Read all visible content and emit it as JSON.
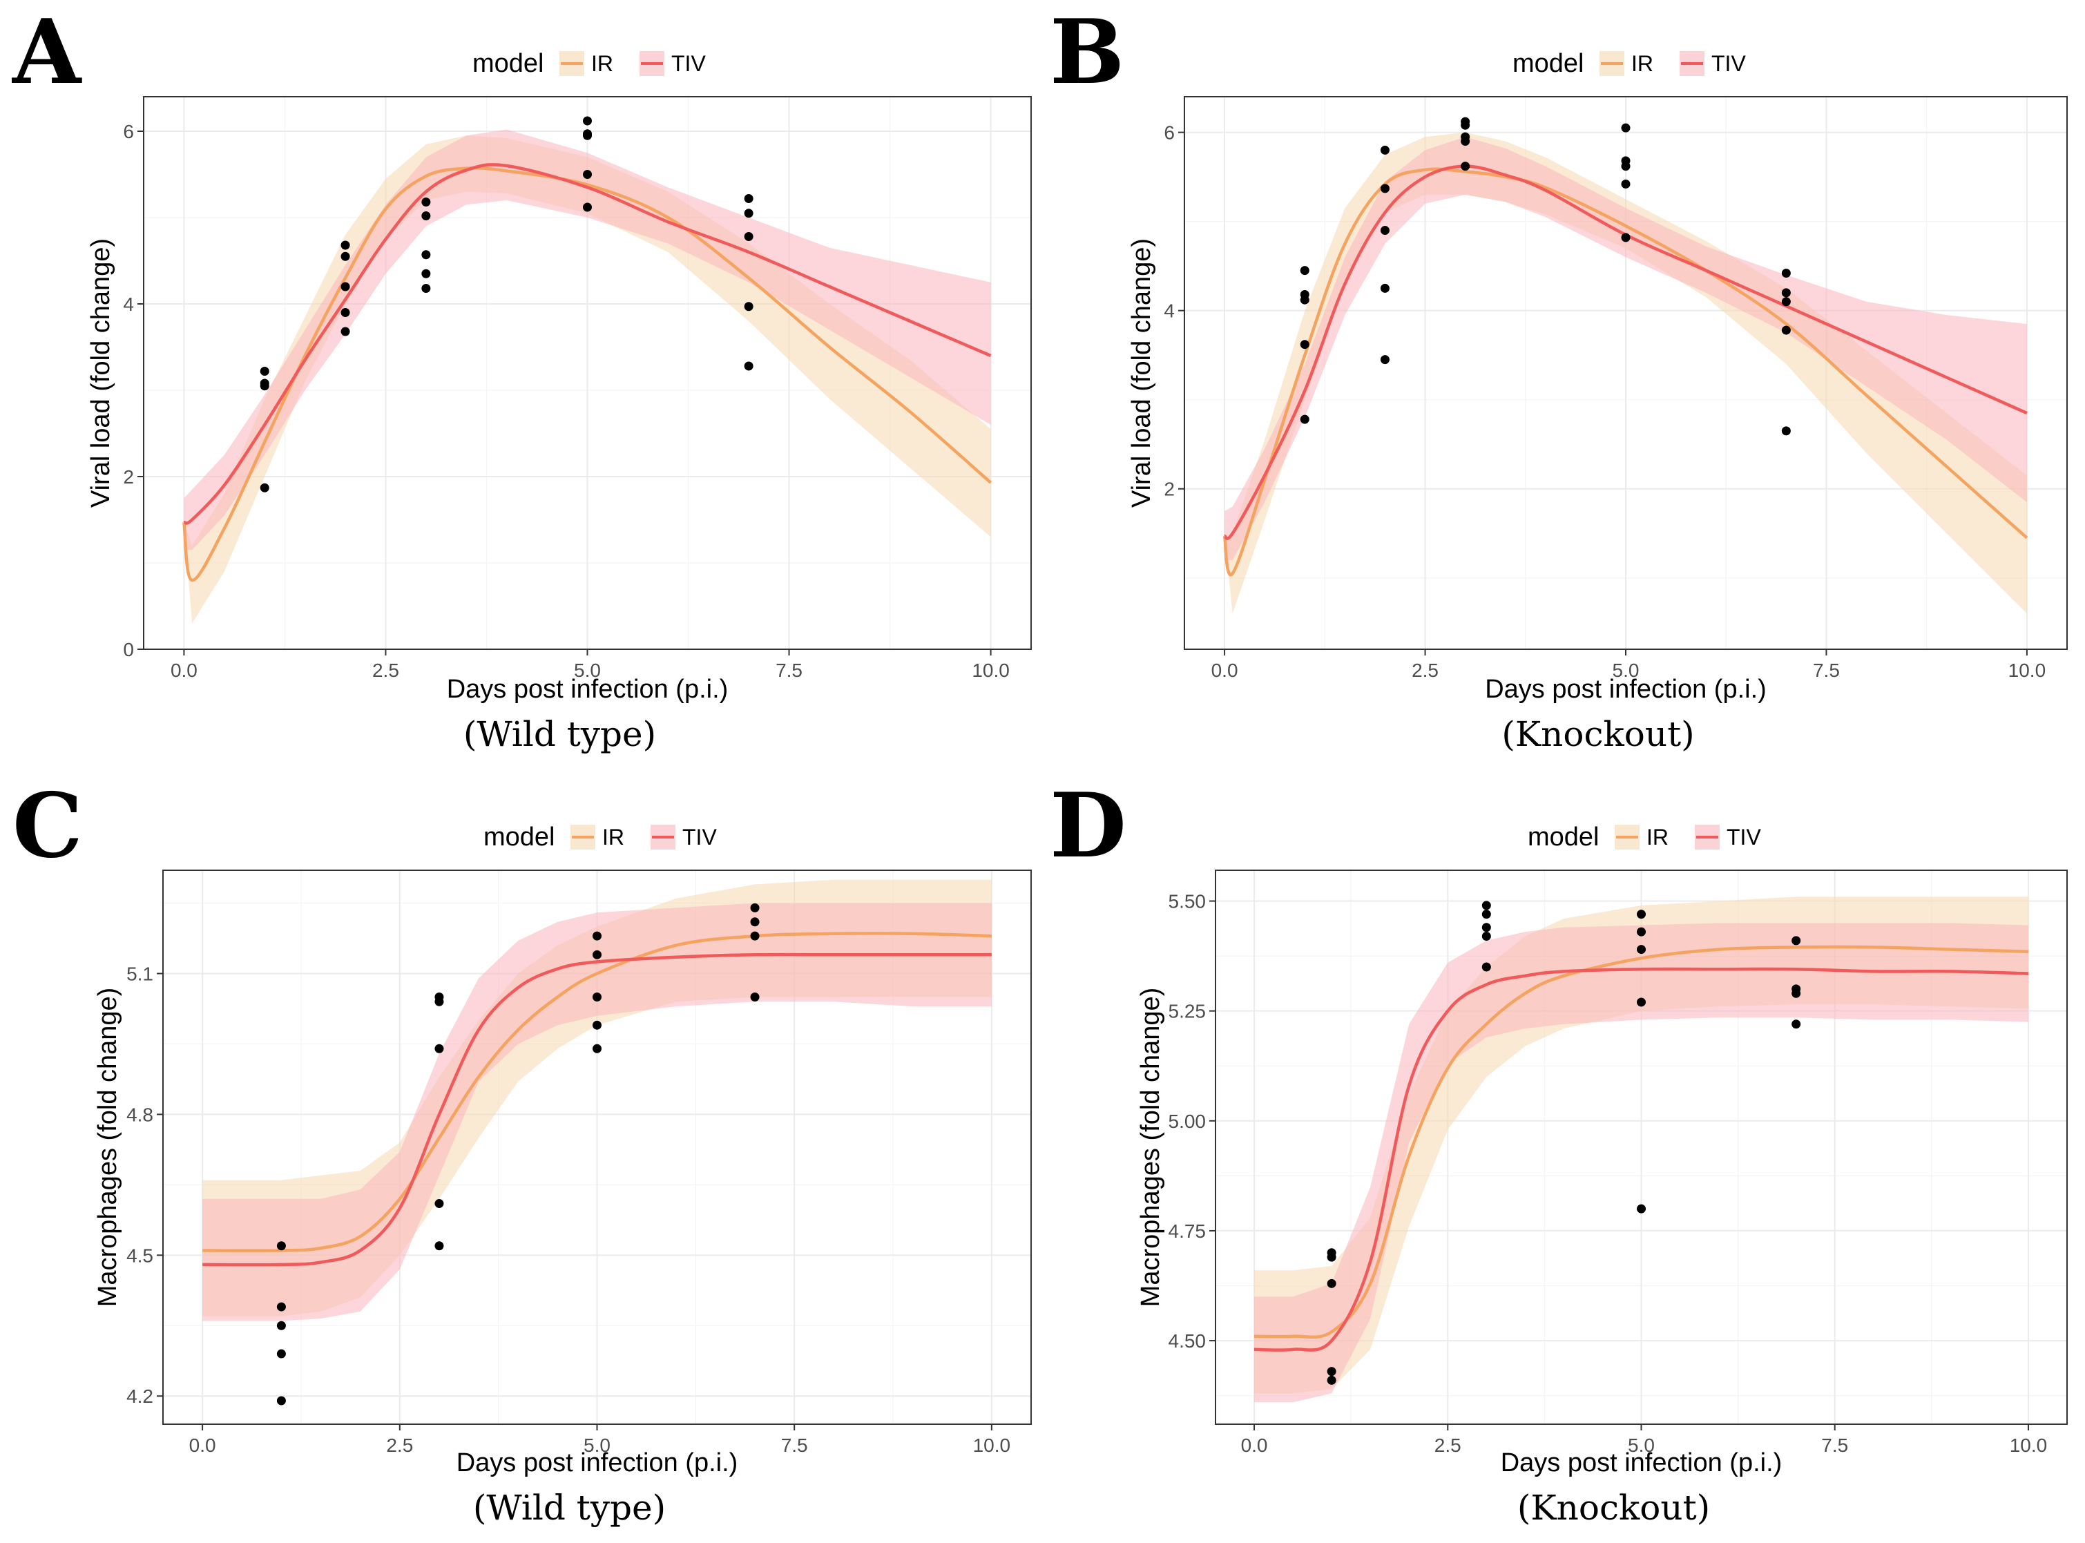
{
  "colors": {
    "IR": "#f4a460",
    "TIV": "#f05a5a",
    "IR_band": "#f5d9b0",
    "TIV_band": "#f9b4bb",
    "points": "#000000"
  },
  "chart_data": [
    {
      "type": "line",
      "panel": "A",
      "caption": "(Wild type)",
      "legend": {
        "title": "model",
        "entries": [
          "IR",
          "TIV"
        ]
      },
      "xlabel": "Days post infection (p.i.)",
      "ylabel": "Viral load (fold change)",
      "xlim": [
        -0.5,
        10.5
      ],
      "ylim": [
        0,
        6.4
      ],
      "xticks": [
        0,
        2.5,
        5,
        7.5,
        10
      ],
      "xtick_labels": [
        "0.0",
        "2.5",
        "5.0",
        "7.5",
        "10.0"
      ],
      "yticks": [
        0,
        2,
        4,
        6
      ],
      "ytick_labels": [
        "0",
        "2",
        "4",
        "6"
      ],
      "series": [
        {
          "name": "IR",
          "x": [
            0,
            0.1,
            0.5,
            1,
            1.5,
            2,
            2.5,
            3,
            3.5,
            4,
            5,
            6,
            7,
            8,
            9,
            10
          ],
          "y": [
            1.47,
            0.8,
            1.4,
            2.4,
            3.4,
            4.3,
            5.1,
            5.48,
            5.57,
            5.54,
            5.38,
            5.0,
            4.3,
            3.5,
            2.75,
            1.93
          ],
          "lower": [
            1.47,
            0.3,
            0.9,
            2.0,
            3.1,
            4.0,
            4.75,
            5.2,
            5.3,
            5.28,
            5.05,
            4.6,
            3.8,
            2.9,
            2.1,
            1.3
          ],
          "upper": [
            1.47,
            1.2,
            1.8,
            2.9,
            3.85,
            4.8,
            5.45,
            5.85,
            5.95,
            5.92,
            5.7,
            5.3,
            4.7,
            4.0,
            3.35,
            2.55
          ]
        },
        {
          "name": "TIV",
          "x": [
            0,
            0.1,
            0.5,
            1,
            1.5,
            2,
            2.5,
            3,
            3.5,
            4,
            5,
            6,
            7,
            8,
            9,
            10
          ],
          "y": [
            1.47,
            1.5,
            1.9,
            2.6,
            3.35,
            4.05,
            4.75,
            5.3,
            5.55,
            5.6,
            5.35,
            4.95,
            4.6,
            4.2,
            3.8,
            3.4
          ],
          "lower": [
            1.15,
            1.15,
            1.55,
            2.25,
            3.0,
            3.65,
            4.35,
            4.9,
            5.15,
            5.2,
            5.0,
            4.7,
            4.25,
            3.7,
            3.15,
            2.6
          ],
          "upper": [
            1.75,
            1.85,
            2.25,
            2.95,
            3.7,
            4.45,
            5.15,
            5.7,
            5.95,
            6.02,
            5.75,
            5.35,
            5.0,
            4.65,
            4.45,
            4.25
          ]
        }
      ],
      "points": {
        "x": [
          1,
          1,
          1,
          1,
          2,
          2,
          2,
          2,
          2,
          3,
          3,
          3,
          3,
          3,
          5,
          5,
          5,
          5,
          5,
          7,
          7,
          7,
          7,
          7
        ],
        "y": [
          3.22,
          3.08,
          3.05,
          1.87,
          4.68,
          4.55,
          4.2,
          3.9,
          3.68,
          5.18,
          5.02,
          4.57,
          4.35,
          4.18,
          6.12,
          5.97,
          5.95,
          5.5,
          5.12,
          5.22,
          5.05,
          4.78,
          3.97,
          3.28
        ]
      }
    },
    {
      "type": "line",
      "panel": "B",
      "caption": "(Knockout)",
      "legend": {
        "title": "model",
        "entries": [
          "IR",
          "TIV"
        ]
      },
      "xlabel": "Days post infection (p.i.)",
      "ylabel": "Viral load (fold change)",
      "xlim": [
        -0.5,
        10.5
      ],
      "ylim": [
        0.2,
        6.4
      ],
      "xticks": [
        0,
        2.5,
        5,
        7.5,
        10
      ],
      "xtick_labels": [
        "0.0",
        "2.5",
        "5.0",
        "7.5",
        "10.0"
      ],
      "yticks": [
        2,
        4,
        6
      ],
      "ytick_labels": [
        "2",
        "4",
        "6"
      ],
      "series": [
        {
          "name": "IR",
          "x": [
            0,
            0.1,
            0.5,
            1,
            1.5,
            2,
            2.5,
            3,
            3.5,
            4,
            5,
            6,
            7,
            8,
            9,
            10
          ],
          "y": [
            1.47,
            1.05,
            2.1,
            3.5,
            4.75,
            5.42,
            5.58,
            5.56,
            5.5,
            5.38,
            4.95,
            4.45,
            3.85,
            3.05,
            2.25,
            1.45
          ],
          "lower": [
            1.47,
            0.6,
            1.65,
            3.0,
            4.35,
            5.1,
            5.3,
            5.3,
            5.22,
            5.08,
            4.7,
            4.15,
            3.4,
            2.4,
            1.5,
            0.6
          ],
          "upper": [
            1.47,
            1.5,
            2.55,
            4.0,
            5.15,
            5.75,
            5.95,
            6.0,
            5.9,
            5.72,
            5.25,
            4.78,
            4.25,
            3.55,
            2.85,
            2.15
          ]
        },
        {
          "name": "TIV",
          "x": [
            0,
            0.1,
            0.5,
            1,
            1.5,
            2,
            2.5,
            3,
            3.5,
            4,
            5,
            6,
            7,
            8,
            9,
            10
          ],
          "y": [
            1.47,
            1.5,
            2.15,
            3.1,
            4.3,
            5.1,
            5.5,
            5.62,
            5.52,
            5.35,
            4.85,
            4.45,
            4.05,
            3.65,
            3.25,
            2.85
          ],
          "lower": [
            1.2,
            1.2,
            1.85,
            2.8,
            3.95,
            4.75,
            5.2,
            5.3,
            5.22,
            5.05,
            4.6,
            4.2,
            3.75,
            3.15,
            2.55,
            1.85
          ],
          "upper": [
            1.75,
            1.8,
            2.45,
            3.4,
            4.6,
            5.45,
            5.8,
            5.95,
            5.82,
            5.62,
            5.15,
            4.72,
            4.4,
            4.1,
            3.95,
            3.85
          ]
        }
      ],
      "points": {
        "x": [
          1,
          1,
          1,
          1,
          1,
          2,
          2,
          2,
          2,
          2,
          3,
          3,
          3,
          3,
          3,
          5,
          5,
          5,
          5,
          5,
          7,
          7,
          7,
          7,
          7
        ],
        "y": [
          4.45,
          4.18,
          4.12,
          3.62,
          2.78,
          5.8,
          5.37,
          4.9,
          4.25,
          3.45,
          6.12,
          6.08,
          5.95,
          5.9,
          5.62,
          6.05,
          5.68,
          5.62,
          5.42,
          4.82,
          4.42,
          4.2,
          4.1,
          3.78,
          2.65
        ]
      }
    },
    {
      "type": "line",
      "panel": "C",
      "caption": "(Wild type)",
      "legend": {
        "title": "model",
        "entries": [
          "IR",
          "TIV"
        ]
      },
      "xlabel": "Days post infection (p.i.)",
      "ylabel": "Macrophages (fold change)",
      "xlim": [
        -0.5,
        10.5
      ],
      "ylim": [
        4.14,
        5.32
      ],
      "xticks": [
        0,
        2.5,
        5,
        7.5,
        10
      ],
      "xtick_labels": [
        "0.0",
        "2.5",
        "5.0",
        "7.5",
        "10.0"
      ],
      "yticks": [
        4.2,
        4.5,
        4.8,
        5.1
      ],
      "ytick_labels": [
        "4.2",
        "4.5",
        "4.8",
        "5.1"
      ],
      "series": [
        {
          "name": "IR",
          "x": [
            0,
            1,
            1.5,
            2,
            2.5,
            3,
            3.5,
            4,
            4.5,
            5,
            6,
            7,
            8,
            9,
            10
          ],
          "y": [
            4.51,
            4.51,
            4.515,
            4.54,
            4.62,
            4.75,
            4.88,
            4.98,
            5.05,
            5.1,
            5.16,
            5.18,
            5.185,
            5.185,
            5.18
          ],
          "lower": [
            4.37,
            4.37,
            4.38,
            4.41,
            4.5,
            4.62,
            4.75,
            4.87,
            4.94,
            4.99,
            5.04,
            5.05,
            5.05,
            5.05,
            5.05
          ],
          "upper": [
            4.66,
            4.66,
            4.67,
            4.68,
            4.74,
            4.88,
            5.0,
            5.1,
            5.16,
            5.2,
            5.26,
            5.29,
            5.3,
            5.3,
            5.3
          ]
        },
        {
          "name": "TIV",
          "x": [
            0,
            1,
            1.5,
            2,
            2.5,
            3,
            3.5,
            4,
            4.5,
            5,
            6,
            7,
            8,
            9,
            10
          ],
          "y": [
            4.48,
            4.48,
            4.485,
            4.51,
            4.6,
            4.8,
            4.98,
            5.07,
            5.11,
            5.125,
            5.135,
            5.14,
            5.14,
            5.14,
            5.14
          ],
          "lower": [
            4.36,
            4.36,
            4.365,
            4.38,
            4.47,
            4.67,
            4.87,
            4.95,
            4.99,
            5.01,
            5.03,
            5.04,
            5.04,
            5.03,
            5.03
          ],
          "upper": [
            4.62,
            4.62,
            4.62,
            4.64,
            4.72,
            4.93,
            5.09,
            5.17,
            5.21,
            5.23,
            5.24,
            5.25,
            5.25,
            5.25,
            5.25
          ]
        }
      ],
      "points": {
        "x": [
          1,
          1,
          1,
          1,
          1,
          3,
          3,
          3,
          3,
          3,
          5,
          5,
          5,
          5,
          5,
          7,
          7,
          7,
          7
        ],
        "y": [
          4.52,
          4.39,
          4.35,
          4.29,
          4.19,
          5.05,
          5.04,
          4.94,
          4.61,
          4.52,
          5.18,
          5.14,
          5.05,
          4.99,
          4.94,
          5.24,
          5.21,
          5.18,
          5.05
        ]
      }
    },
    {
      "type": "line",
      "panel": "D",
      "caption": "(Knockout)",
      "legend": {
        "title": "model",
        "entries": [
          "IR",
          "TIV"
        ]
      },
      "xlabel": "Days post infection (p.i.)",
      "ylabel": "Macrophages (fold change)",
      "xlim": [
        -0.5,
        10.5
      ],
      "ylim": [
        4.31,
        5.57
      ],
      "xticks": [
        0,
        2.5,
        5,
        7.5,
        10
      ],
      "xtick_labels": [
        "0.0",
        "2.5",
        "5.0",
        "7.5",
        "10.0"
      ],
      "yticks": [
        4.5,
        4.75,
        5.0,
        5.25,
        5.5
      ],
      "ytick_labels": [
        "4.50",
        "4.75",
        "5.00",
        "5.25",
        "5.50"
      ],
      "series": [
        {
          "name": "IR",
          "x": [
            0,
            0.5,
            1,
            1.5,
            2,
            2.5,
            3,
            3.5,
            4,
            5,
            6,
            7,
            8,
            9,
            10
          ],
          "y": [
            4.51,
            4.51,
            4.52,
            4.63,
            4.92,
            5.12,
            5.22,
            5.29,
            5.33,
            5.37,
            5.39,
            5.395,
            5.395,
            5.39,
            5.385
          ],
          "lower": [
            4.38,
            4.38,
            4.39,
            4.48,
            4.76,
            4.98,
            5.1,
            5.17,
            5.21,
            5.25,
            5.26,
            5.265,
            5.265,
            5.26,
            5.255
          ],
          "upper": [
            4.66,
            4.66,
            4.67,
            4.78,
            5.06,
            5.25,
            5.35,
            5.42,
            5.46,
            5.49,
            5.5,
            5.51,
            5.51,
            5.51,
            5.51
          ]
        },
        {
          "name": "TIV",
          "x": [
            0,
            0.5,
            1,
            1.5,
            2,
            2.5,
            3,
            3.5,
            4,
            5,
            6,
            7,
            8,
            9,
            10
          ],
          "y": [
            4.48,
            4.48,
            4.5,
            4.68,
            5.08,
            5.25,
            5.31,
            5.33,
            5.34,
            5.345,
            5.345,
            5.345,
            5.34,
            5.34,
            5.335
          ],
          "lower": [
            4.36,
            4.36,
            4.38,
            4.55,
            4.95,
            5.13,
            5.19,
            5.21,
            5.22,
            5.23,
            5.235,
            5.235,
            5.23,
            5.23,
            5.225
          ],
          "upper": [
            4.6,
            4.6,
            4.63,
            4.85,
            5.22,
            5.36,
            5.41,
            5.43,
            5.44,
            5.445,
            5.45,
            5.45,
            5.45,
            5.45,
            5.445
          ]
        }
      ],
      "points": {
        "x": [
          1,
          1,
          1,
          1,
          1,
          3,
          3,
          3,
          3,
          3,
          5,
          5,
          5,
          5,
          5,
          7,
          7,
          7,
          7
        ],
        "y": [
          4.7,
          4.69,
          4.63,
          4.43,
          4.41,
          5.49,
          5.47,
          5.42,
          5.35,
          5.44,
          5.47,
          5.43,
          5.39,
          5.27,
          4.8,
          5.41,
          5.3,
          5.29,
          5.22
        ]
      }
    }
  ]
}
